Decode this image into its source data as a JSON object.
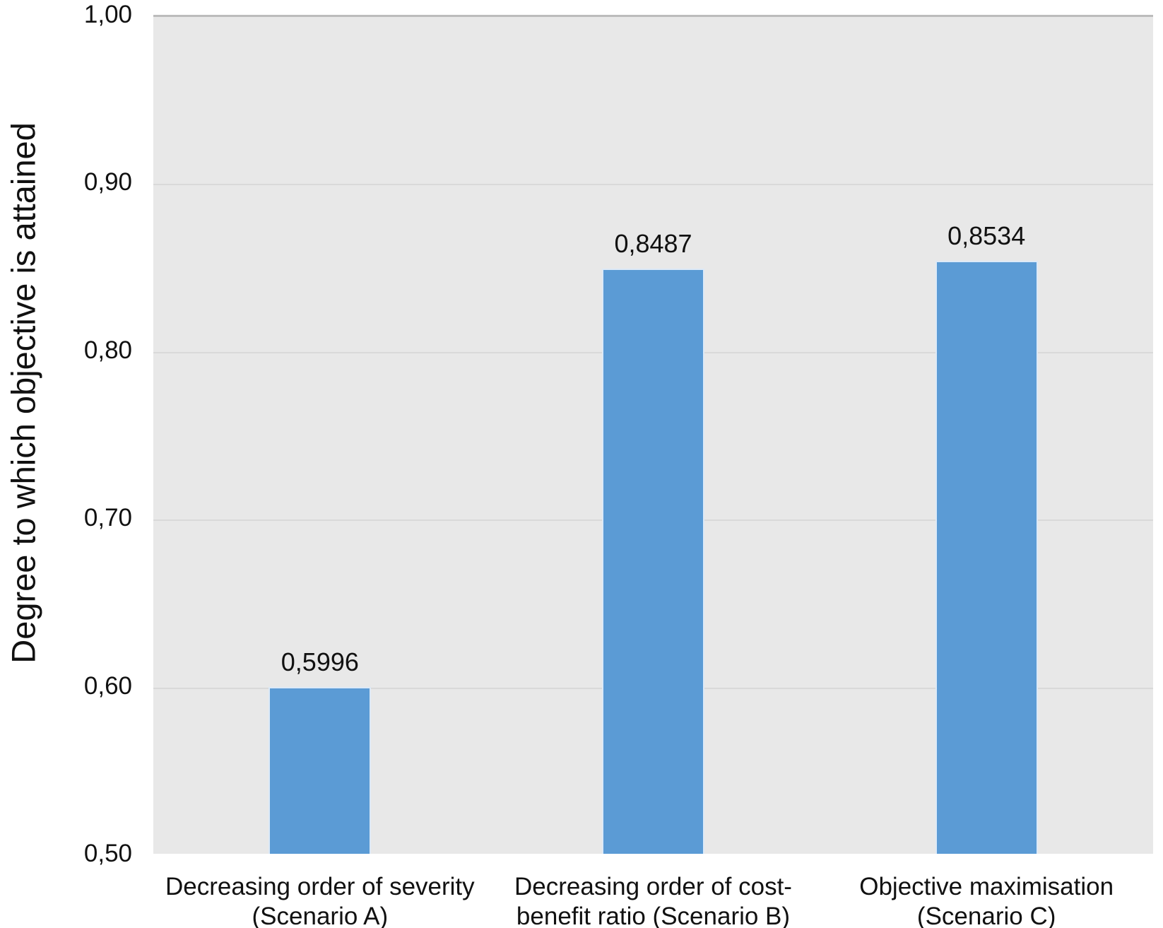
{
  "chart_data": {
    "type": "bar",
    "title": "",
    "xlabel": "",
    "ylabel": "Degree to which objective is attained",
    "ylim": [
      0.5,
      1.0
    ],
    "grid": true,
    "legend": "none",
    "decimal_separator": ",",
    "colors": {
      "plot_background": "#e8e8e8",
      "gridline": "#d9d9d9",
      "plot_top_border": "#bcbcbc",
      "bar_fill": "#5b9bd5",
      "bar_edge": "#dce9f7",
      "text": "#111111",
      "page_background": "#ffffff"
    },
    "y_ticks": [
      {
        "value": 1.0,
        "label": "1,00"
      },
      {
        "value": 0.9,
        "label": "0,90"
      },
      {
        "value": 0.8,
        "label": "0,80"
      },
      {
        "value": 0.7,
        "label": "0,70"
      },
      {
        "value": 0.6,
        "label": "0,60"
      },
      {
        "value": 0.5,
        "label": "0,50"
      }
    ],
    "categories": [
      "Decreasing order of severity (Scenario A)",
      "Decreasing order of cost-benefit ratio (Scenario B)",
      "Objective maximisation (Scenario C)"
    ],
    "bars": [
      {
        "category_lines": [
          "Decreasing order of severity",
          "(Scenario A)"
        ],
        "value": 0.5996,
        "value_label": "0,5996"
      },
      {
        "category_lines": [
          "Decreasing order of cost-",
          "benefit ratio (Scenario B)"
        ],
        "value": 0.8487,
        "value_label": "0,8487"
      },
      {
        "category_lines": [
          "Objective maximisation",
          "(Scenario C)"
        ],
        "value": 0.8534,
        "value_label": "0,8534"
      }
    ]
  }
}
